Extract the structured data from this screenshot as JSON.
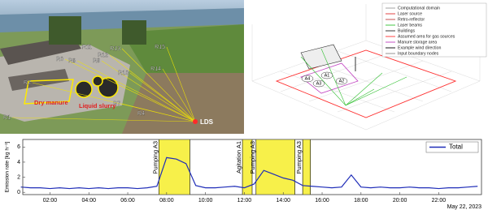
{
  "photo": {
    "reflectors": [
      "R13",
      "R15",
      "R10",
      "R9",
      "R8",
      "R0",
      "R2",
      "R1",
      "R12",
      "R14",
      "R7",
      "R4",
      "R11"
    ],
    "source": "LDS",
    "areas": [
      "Dry manure",
      "Liquid slurry"
    ]
  },
  "diagram": {
    "legend": [
      "Computational domain",
      "Laser source",
      "Retro-reflector",
      "Laser beams",
      "Buildings",
      "Assumed area for gas sources",
      "Manure storage area",
      "Example wind direction",
      "Input boundary nodes"
    ],
    "areas": [
      "A1",
      "A2",
      "A3",
      "A4"
    ]
  },
  "chart_data": {
    "type": "line",
    "ylabel": "Emission rate [kg h⁻¹]",
    "date_label": "May 22, 2023",
    "x": [
      0.5,
      1,
      1.5,
      2,
      2.5,
      3,
      3.5,
      4,
      4.5,
      5,
      5.5,
      6,
      6.5,
      7,
      7.5,
      8,
      8.5,
      9,
      9.5,
      10,
      10.5,
      11,
      11.5,
      12,
      12.5,
      13,
      13.5,
      14,
      14.5,
      15,
      15.5,
      16,
      16.5,
      17,
      17.5,
      18,
      18.5,
      19,
      19.5,
      20,
      20.5,
      21,
      21.5,
      22,
      22.5,
      23,
      23.5,
      24
    ],
    "series": [
      {
        "name": "Total",
        "color": "#1f2db8",
        "values": [
          0.7,
          0.6,
          0.6,
          0.5,
          0.6,
          0.5,
          0.6,
          0.5,
          0.6,
          0.5,
          0.6,
          0.6,
          0.5,
          0.6,
          0.8,
          4.6,
          4.4,
          3.8,
          0.9,
          0.6,
          0.6,
          0.7,
          0.8,
          0.6,
          1.1,
          2.9,
          2.4,
          1.9,
          1.6,
          0.9,
          0.8,
          0.7,
          0.6,
          0.7,
          2.3,
          0.7,
          0.6,
          0.7,
          0.6,
          0.6,
          0.7,
          0.6,
          0.6,
          0.5,
          0.6,
          0.6,
          0.7,
          0.8
        ]
      }
    ],
    "xlim": [
      0.6,
      24.2
    ],
    "ylim": [
      -0.3,
      7
    ],
    "xticks": [
      {
        "value": 2,
        "label": "02:00"
      },
      {
        "value": 4,
        "label": "04:00"
      },
      {
        "value": 6,
        "label": "06:00"
      },
      {
        "value": 8,
        "label": "08:00"
      },
      {
        "value": 10,
        "label": "10:00"
      },
      {
        "value": 12,
        "label": "12:00"
      },
      {
        "value": 14,
        "label": "14:00"
      },
      {
        "value": 16,
        "label": "16:00"
      },
      {
        "value": 18,
        "label": "18:00"
      },
      {
        "value": 20,
        "label": "20:00"
      },
      {
        "value": 22,
        "label": "22:00"
      }
    ],
    "yticks": [
      0,
      2,
      4,
      6
    ],
    "shaded_periods": [
      {
        "start": 7.6,
        "end": 9.2,
        "label": "Pumping A3"
      },
      {
        "start": 11.9,
        "end": 12.4,
        "label": "Agitation A1"
      },
      {
        "start": 12.6,
        "end": 14.6,
        "label": "Pumping A3"
      },
      {
        "start": 15.0,
        "end": 15.4,
        "label": "Pumping A3"
      }
    ],
    "shade_color": "#f7f04a",
    "legend_position": "upper right"
  }
}
